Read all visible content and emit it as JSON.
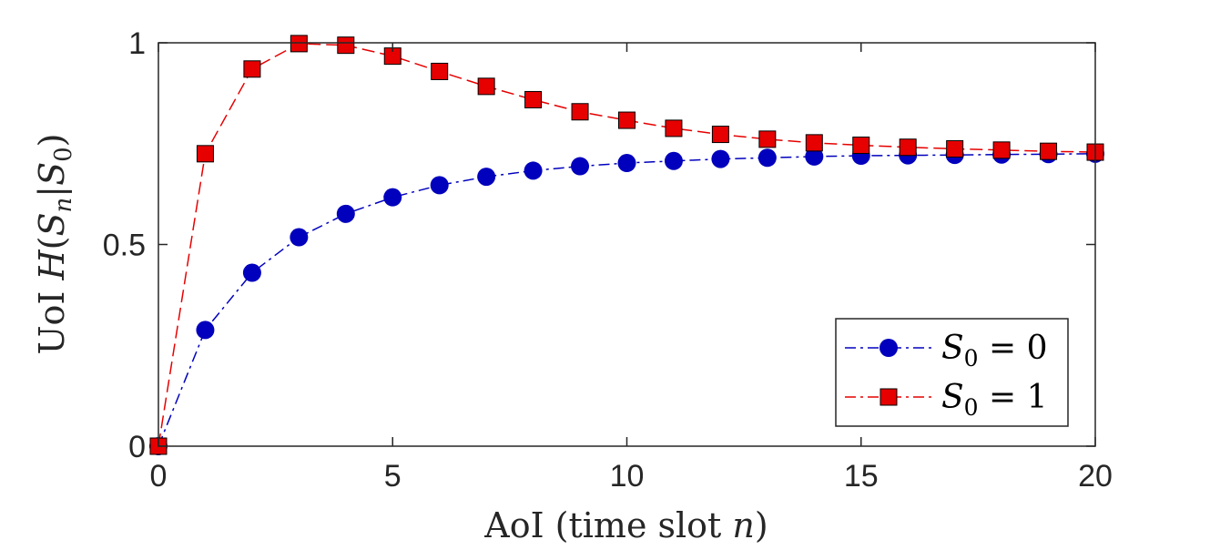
{
  "chart_data": {
    "type": "line",
    "title": "",
    "xlabel": "AoI (time slot n)",
    "xlabel_parts": {
      "prefix": "AoI (time slot ",
      "var": "n",
      "suffix": ")"
    },
    "ylabel": "UoI H(S_n|S_0)",
    "ylabel_parts": {
      "prefix": "UoI ",
      "func": "H",
      "open": "(",
      "s1": "S",
      "s1_sub": "n",
      "bar": "|",
      "s2": "S",
      "s2_sub": "0",
      "close": ")"
    },
    "xlim": [
      0,
      20
    ],
    "ylim": [
      0,
      1
    ],
    "xticks": [
      0,
      5,
      10,
      15,
      20
    ],
    "xtick_labels": [
      "0",
      "5",
      "10",
      "15",
      "20"
    ],
    "yticks": [
      0,
      0.5,
      1
    ],
    "ytick_labels": [
      "0",
      "0.5",
      "1"
    ],
    "grid": false,
    "legend_position": "bottom-right",
    "x": [
      0,
      1,
      2,
      3,
      4,
      5,
      6,
      7,
      8,
      9,
      10,
      11,
      12,
      13,
      14,
      15,
      16,
      17,
      18,
      19,
      20
    ],
    "series": [
      {
        "name": "S_0 = 0",
        "legend": {
          "var": "S",
          "sub": "0",
          "rest": " = 0"
        },
        "marker": "circle",
        "line_style": "dash-dot",
        "color": "#0000bd",
        "values": [
          0,
          0.288,
          0.43,
          0.518,
          0.576,
          0.617,
          0.647,
          0.668,
          0.683,
          0.694,
          0.702,
          0.707,
          0.712,
          0.715,
          0.718,
          0.72,
          0.721,
          0.722,
          0.723,
          0.724,
          0.725
        ]
      },
      {
        "name": "S_0 = 1",
        "legend": {
          "var": "S",
          "sub": "0",
          "rest": " = 1"
        },
        "marker": "square",
        "line_style": "dashed",
        "color": "#e60000",
        "values": [
          0,
          0.725,
          0.935,
          0.998,
          0.994,
          0.967,
          0.929,
          0.892,
          0.859,
          0.829,
          0.808,
          0.788,
          0.773,
          0.761,
          0.752,
          0.746,
          0.741,
          0.737,
          0.734,
          0.731,
          0.729
        ]
      }
    ]
  }
}
